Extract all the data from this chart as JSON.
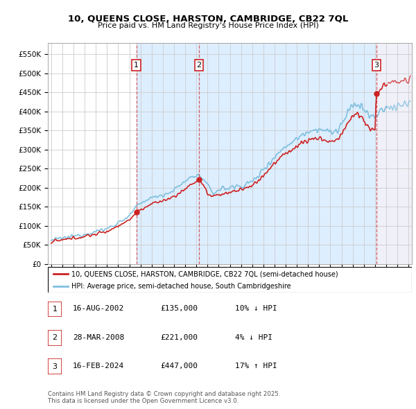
{
  "title_line1": "10, QUEENS CLOSE, HARSTON, CAMBRIDGE, CB22 7QL",
  "title_line2": "Price paid vs. HM Land Registry's House Price Index (HPI)",
  "ylim": [
    0,
    580000
  ],
  "xlim_start": 1994.7,
  "xlim_end": 2027.3,
  "yticks": [
    0,
    50000,
    100000,
    150000,
    200000,
    250000,
    300000,
    350000,
    400000,
    450000,
    500000,
    550000
  ],
  "ytick_labels": [
    "£0",
    "£50K",
    "£100K",
    "£150K",
    "£200K",
    "£250K",
    "£300K",
    "£350K",
    "£400K",
    "£450K",
    "£500K",
    "£550K"
  ],
  "sale_dates": [
    2002.62,
    2008.24,
    2024.12
  ],
  "sale_prices": [
    135000,
    221000,
    447000
  ],
  "sale_labels": [
    "1",
    "2",
    "3"
  ],
  "hpi_color": "#7fbfde",
  "price_color": "#cc2222",
  "shaded_region_color": "#ddeeff",
  "legend_label1": "10, QUEENS CLOSE, HARSTON, CAMBRIDGE, CB22 7QL (semi-detached house)",
  "legend_label2": "HPI: Average price, semi-detached house, South Cambridgeshire",
  "table_entries": [
    {
      "label": "1",
      "date": "16-AUG-2002",
      "price": "£135,000",
      "hpi": "10% ↓ HPI"
    },
    {
      "label": "2",
      "date": "28-MAR-2008",
      "price": "£221,000",
      "hpi": "4% ↓ HPI"
    },
    {
      "label": "3",
      "date": "16-FEB-2024",
      "price": "£447,000",
      "hpi": "17% ↑ HPI"
    }
  ],
  "footnote": "Contains HM Land Registry data © Crown copyright and database right 2025.\nThis data is licensed under the Open Government Licence v3.0.",
  "background_color": "#ffffff",
  "grid_color": "#cccccc",
  "current_date": 2025.1,
  "future_end": 2027.3
}
